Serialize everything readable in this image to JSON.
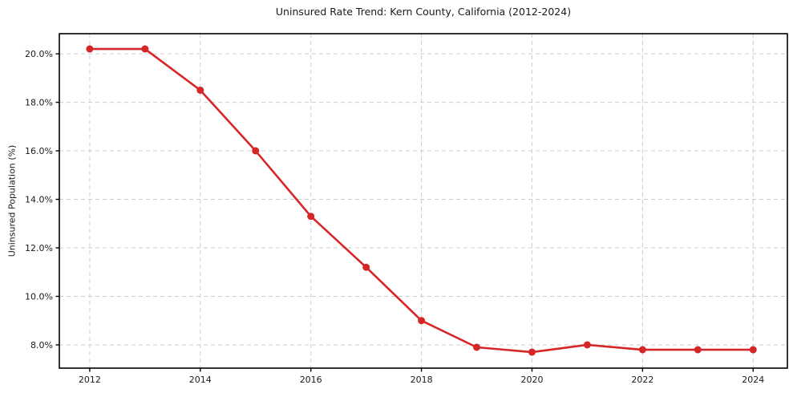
{
  "chart_data": {
    "type": "line",
    "title": "Uninsured Rate Trend: Kern County, California (2012-2024)",
    "xlabel": "",
    "ylabel": "Uninsured Population (%)",
    "series": [
      {
        "name": "Uninsured rate (%)",
        "x": [
          2012,
          2013,
          2014,
          2015,
          2016,
          2017,
          2018,
          2019,
          2020,
          2021,
          2022,
          2023,
          2024
        ],
        "values": [
          20.2,
          20.2,
          18.5,
          16.0,
          13.3,
          11.2,
          9.0,
          7.9,
          7.7,
          8.0,
          7.8,
          7.8,
          7.8
        ]
      }
    ],
    "x_ticks": [
      2012,
      2014,
      2016,
      2018,
      2020,
      2022,
      2024
    ],
    "x_tick_labels": [
      "2012",
      "2014",
      "2016",
      "2018",
      "2020",
      "2022",
      "2024"
    ],
    "y_ticks": [
      8,
      10,
      12,
      14,
      16,
      18,
      20
    ],
    "y_tick_labels": [
      "8.0%",
      "10.0%",
      "12.0%",
      "14.0%",
      "16.0%",
      "18.0%",
      "20.0%"
    ],
    "xlim": [
      2011.45,
      2024.62
    ],
    "ylim": [
      7.04,
      20.83
    ],
    "grid": true,
    "grid_style": "dashed",
    "legend": "none",
    "colors": {
      "line": "#d62728",
      "marker": "#d62728",
      "grid": "#cccccc",
      "axis": "#000000",
      "text": "#1a1a1a",
      "background": "#ffffff"
    }
  }
}
